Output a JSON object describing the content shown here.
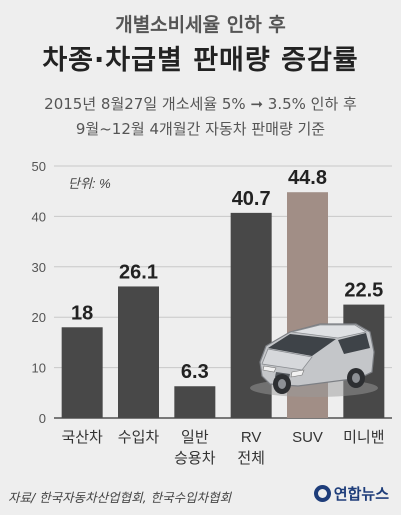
{
  "header": {
    "title_line1": "개별소비세율 인하 후",
    "title_line2": "차종·차급별 판매량 증감률",
    "subtitle_line1": "2015년 8월27일 개소세율 5% ➞ 3.5% 인하 후",
    "subtitle_line2": "9월~12월 4개월간 자동차 판매량 기준"
  },
  "chart_data": {
    "type": "bar",
    "unit_label": "단위: %",
    "categories": [
      [
        "국산차"
      ],
      [
        "수입차"
      ],
      [
        "일반",
        "승용차"
      ],
      [
        "RV",
        "전체"
      ],
      [
        "SUV"
      ],
      [
        "미니밴"
      ]
    ],
    "values": [
      18,
      26.1,
      6.3,
      40.7,
      44.8,
      22.5
    ],
    "value_labels": [
      "18",
      "26.1",
      "6.3",
      "40.7",
      "44.8",
      "22.5"
    ],
    "yticks": [
      "0",
      "10",
      "20",
      "30",
      "40",
      "50"
    ],
    "ylim": [
      0,
      50
    ],
    "grid": true,
    "colors": {
      "default": "#484848",
      "highlight": "#a18e86"
    },
    "highlight_index": 4,
    "illustration": "car-icon"
  },
  "footer": {
    "source": "자료/ 한국자동차산업협회, 한국수입차협회",
    "logo_text": "연합뉴스"
  }
}
